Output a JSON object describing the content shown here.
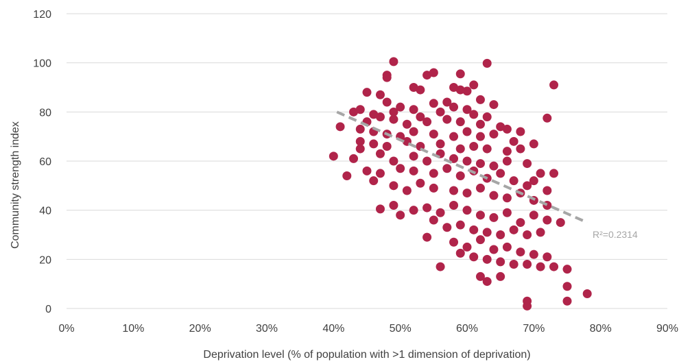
{
  "chart_data": {
    "type": "scatter",
    "title": "",
    "xlabel": "Deprivation level (% of population with >1 dimension of deprivation)",
    "ylabel": "Community strength index",
    "xlim": [
      0,
      90
    ],
    "ylim": [
      0,
      120
    ],
    "x_ticks": [
      "0%",
      "10%",
      "20%",
      "30%",
      "40%",
      "50%",
      "60%",
      "70%",
      "80%",
      "90%"
    ],
    "y_ticks": [
      "0",
      "20",
      "40",
      "60",
      "80",
      "100",
      "120"
    ],
    "grid": "horizontal",
    "legend": "none",
    "colors": {
      "points": "#b0244a",
      "trendline": "#a6a6a6",
      "grid": "#d9d9d9"
    },
    "trendline": {
      "type": "linear",
      "from": [
        40.5,
        80
      ],
      "to": [
        78,
        35
      ],
      "label": "R²=0.2314"
    },
    "points": [
      [
        49,
        100.5
      ],
      [
        63,
        99.8
      ],
      [
        54,
        95
      ],
      [
        55,
        96
      ],
      [
        59,
        95.5
      ],
      [
        48,
        95
      ],
      [
        48,
        94
      ],
      [
        61,
        91
      ],
      [
        73,
        91
      ],
      [
        52,
        90
      ],
      [
        58,
        90
      ],
      [
        59,
        89
      ],
      [
        60,
        88.5
      ],
      [
        45,
        88
      ],
      [
        53,
        89
      ],
      [
        47,
        87
      ],
      [
        62,
        85
      ],
      [
        57,
        84
      ],
      [
        55,
        83.5
      ],
      [
        64,
        83
      ],
      [
        48,
        84
      ],
      [
        50,
        82
      ],
      [
        49,
        80
      ],
      [
        52,
        81
      ],
      [
        44,
        81
      ],
      [
        43,
        80
      ],
      [
        46,
        79
      ],
      [
        47,
        78
      ],
      [
        53,
        78
      ],
      [
        56,
        80
      ],
      [
        58,
        82
      ],
      [
        60,
        81
      ],
      [
        61,
        79
      ],
      [
        63,
        78
      ],
      [
        45,
        76
      ],
      [
        49,
        77
      ],
      [
        51,
        75
      ],
      [
        54,
        76
      ],
      [
        57,
        77
      ],
      [
        59,
        76
      ],
      [
        62,
        75
      ],
      [
        65,
        74
      ],
      [
        66,
        73
      ],
      [
        68,
        72
      ],
      [
        72,
        77.5
      ],
      [
        41,
        74
      ],
      [
        44,
        73
      ],
      [
        46,
        72
      ],
      [
        48,
        71
      ],
      [
        50,
        70
      ],
      [
        52,
        72
      ],
      [
        55,
        71
      ],
      [
        58,
        70
      ],
      [
        60,
        72
      ],
      [
        62,
        70
      ],
      [
        64,
        71
      ],
      [
        67,
        68
      ],
      [
        44,
        68
      ],
      [
        46,
        67
      ],
      [
        48,
        66
      ],
      [
        51,
        68
      ],
      [
        53,
        66
      ],
      [
        56,
        67
      ],
      [
        59,
        65
      ],
      [
        61,
        66
      ],
      [
        63,
        65
      ],
      [
        66,
        64
      ],
      [
        68,
        65
      ],
      [
        70,
        67
      ],
      [
        40,
        62
      ],
      [
        43,
        61
      ],
      [
        44,
        65
      ],
      [
        47,
        63
      ],
      [
        49,
        60
      ],
      [
        52,
        62
      ],
      [
        54,
        60
      ],
      [
        56,
        63
      ],
      [
        58,
        61
      ],
      [
        60,
        60
      ],
      [
        62,
        59
      ],
      [
        64,
        58
      ],
      [
        66,
        60
      ],
      [
        69,
        59
      ],
      [
        71,
        55
      ],
      [
        73,
        55
      ],
      [
        42,
        54
      ],
      [
        45,
        56
      ],
      [
        47,
        55
      ],
      [
        50,
        57
      ],
      [
        52,
        56
      ],
      [
        55,
        55
      ],
      [
        57,
        57
      ],
      [
        59,
        54
      ],
      [
        61,
        56
      ],
      [
        63,
        53
      ],
      [
        65,
        55
      ],
      [
        67,
        52
      ],
      [
        69,
        50
      ],
      [
        70,
        52
      ],
      [
        72,
        48
      ],
      [
        46,
        52
      ],
      [
        49,
        50
      ],
      [
        51,
        48
      ],
      [
        53,
        51
      ],
      [
        55,
        49
      ],
      [
        58,
        48
      ],
      [
        60,
        47
      ],
      [
        62,
        49
      ],
      [
        64,
        46
      ],
      [
        66,
        45
      ],
      [
        68,
        47
      ],
      [
        70,
        44
      ],
      [
        72,
        42
      ],
      [
        47,
        40.5
      ],
      [
        49,
        42
      ],
      [
        50,
        38
      ],
      [
        52,
        40
      ],
      [
        54,
        41
      ],
      [
        56,
        39
      ],
      [
        58,
        42
      ],
      [
        60,
        40
      ],
      [
        62,
        38
      ],
      [
        64,
        37
      ],
      [
        66,
        39
      ],
      [
        68,
        35
      ],
      [
        70,
        38
      ],
      [
        72,
        36
      ],
      [
        74,
        35
      ],
      [
        55,
        36
      ],
      [
        57,
        33
      ],
      [
        59,
        34
      ],
      [
        61,
        32
      ],
      [
        63,
        31
      ],
      [
        65,
        30
      ],
      [
        67,
        32
      ],
      [
        69,
        30
      ],
      [
        71,
        31
      ],
      [
        54,
        29
      ],
      [
        58,
        27
      ],
      [
        60,
        25
      ],
      [
        62,
        28
      ],
      [
        64,
        24
      ],
      [
        66,
        25
      ],
      [
        68,
        23
      ],
      [
        70,
        22
      ],
      [
        72,
        21
      ],
      [
        59,
        22.5
      ],
      [
        61,
        21
      ],
      [
        63,
        20
      ],
      [
        65,
        19
      ],
      [
        67,
        18
      ],
      [
        69,
        18
      ],
      [
        71,
        17
      ],
      [
        73,
        17
      ],
      [
        56,
        17
      ],
      [
        62,
        13
      ],
      [
        63,
        11
      ],
      [
        65,
        13
      ],
      [
        75,
        16
      ],
      [
        75,
        9
      ],
      [
        75,
        3
      ],
      [
        78,
        6
      ],
      [
        69,
        3
      ],
      [
        69,
        1
      ]
    ]
  }
}
